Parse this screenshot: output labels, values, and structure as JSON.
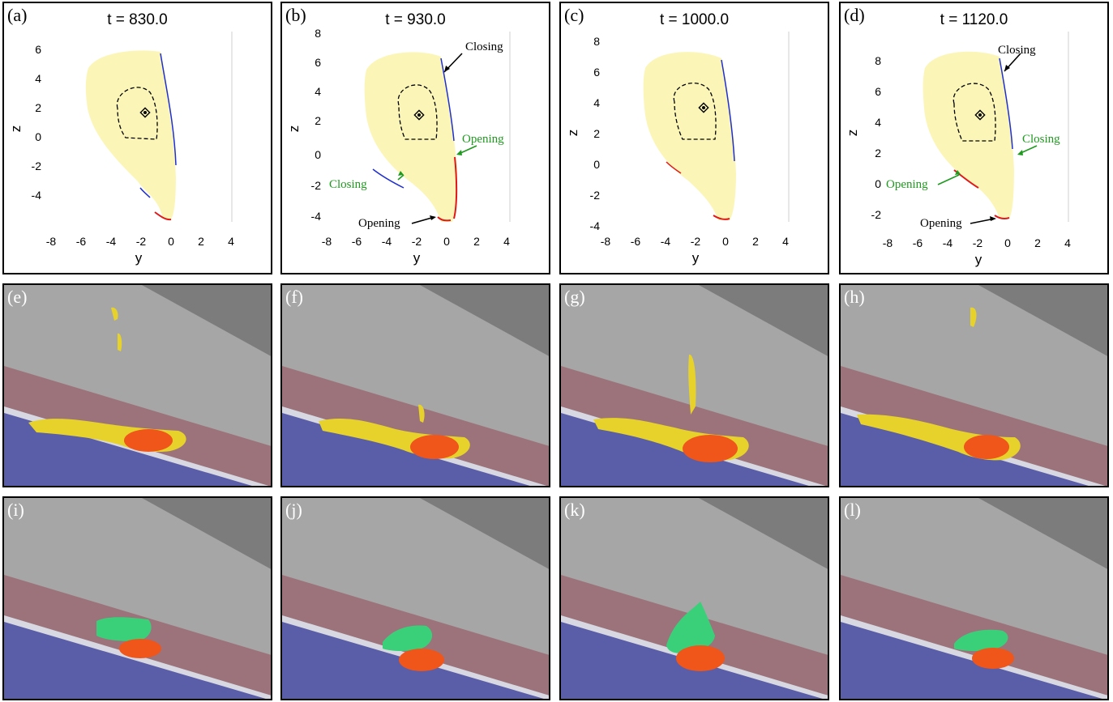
{
  "top_row": [
    {
      "label": "(a)",
      "title": "t = 830.0",
      "xticks": [
        "-8",
        "-6",
        "-4",
        "-2",
        "0",
        "2",
        "4"
      ],
      "yticks": [
        "6",
        "4",
        "2",
        "0",
        "-2",
        "-4"
      ],
      "xlabel": "y",
      "ylabel": "z",
      "annotations": []
    },
    {
      "label": "(b)",
      "title": "t = 930.0",
      "xticks": [
        "-8",
        "-6",
        "-4",
        "-2",
        "0",
        "2",
        "4"
      ],
      "yticks": [
        "8",
        "6",
        "4",
        "2",
        "0",
        "-2",
        "-4"
      ],
      "xlabel": "y",
      "ylabel": "z",
      "annotations": [
        {
          "text": "Closing",
          "color": "#000000"
        },
        {
          "text": "Opening",
          "color": "#1f9a1f"
        },
        {
          "text": "Closing",
          "color": "#1f9a1f"
        },
        {
          "text": "Opening",
          "color": "#000000"
        }
      ]
    },
    {
      "label": "(c)",
      "title": "t = 1000.0",
      "xticks": [
        "-8",
        "-6",
        "-4",
        "-2",
        "0",
        "2",
        "4"
      ],
      "yticks": [
        "8",
        "6",
        "4",
        "2",
        "0",
        "-2",
        "-4"
      ],
      "xlabel": "y",
      "ylabel": "z",
      "annotations": []
    },
    {
      "label": "(d)",
      "title": "t = 1120.0",
      "xticks": [
        "-8",
        "-6",
        "-4",
        "-2",
        "0",
        "2",
        "4"
      ],
      "yticks": [
        "8",
        "6",
        "4",
        "2",
        "0",
        "-2"
      ],
      "xlabel": "y",
      "ylabel": "z",
      "annotations": [
        {
          "text": "Closing",
          "color": "#000000"
        },
        {
          "text": "Closing",
          "color": "#1f9a1f"
        },
        {
          "text": "Opening",
          "color": "#1f9a1f"
        },
        {
          "text": "Opening",
          "color": "#000000"
        }
      ]
    }
  ],
  "middle_row": [
    {
      "label": "(e)"
    },
    {
      "label": "(f)"
    },
    {
      "label": "(g)"
    },
    {
      "label": "(h)"
    }
  ],
  "bottom_row": [
    {
      "label": "(i)"
    },
    {
      "label": "(j)"
    },
    {
      "label": "(k)"
    },
    {
      "label": "(l)"
    }
  ],
  "colors": {
    "shape_fill": "#fbf6b8",
    "closing_edge": "#1f2fd0",
    "opening_edge": "#e01818",
    "render_bg": "#a6a6a6",
    "render_dark": "#7c7c7c",
    "red_band": "#9a6a72",
    "blue_band": "#5a5ea8",
    "yellow_iso": "#e6d22a",
    "orange_iso": "#f0551a",
    "green_iso": "#3ad07a"
  }
}
